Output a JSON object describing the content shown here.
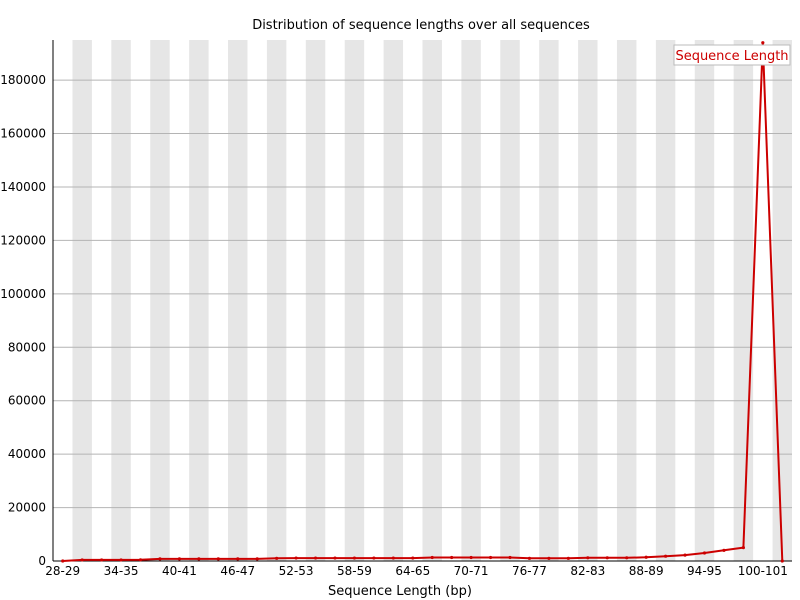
{
  "chart_data": {
    "type": "line",
    "title": "Distribution of sequence lengths over all sequences",
    "xlabel": "Sequence Length (bp)",
    "ylabel": "",
    "ylim": [
      0,
      195000
    ],
    "y_ticks": [
      0,
      20000,
      40000,
      60000,
      80000,
      100000,
      120000,
      140000,
      160000,
      180000
    ],
    "categories": [
      "28-29",
      "30-31",
      "32-33",
      "34-35",
      "36-37",
      "38-39",
      "40-41",
      "42-43",
      "44-45",
      "46-47",
      "48-49",
      "50-51",
      "52-53",
      "54-55",
      "56-57",
      "58-59",
      "60-61",
      "62-63",
      "64-65",
      "66-67",
      "68-69",
      "70-71",
      "72-73",
      "74-75",
      "76-77",
      "78-79",
      "80-81",
      "82-83",
      "84-85",
      "86-87",
      "88-89",
      "90-91",
      "92-93",
      "94-95",
      "96-97",
      "98-99",
      "100-101",
      "102"
    ],
    "x_tick_labels": [
      "28-29",
      "34-35",
      "40-41",
      "46-47",
      "52-53",
      "58-59",
      "64-65",
      "70-71",
      "76-77",
      "82-83",
      "88-89",
      "94-95",
      "100-101"
    ],
    "grid": "horizontal lines with alternating vertical column shading",
    "legend_position": "top-right",
    "series": [
      {
        "name": "Sequence Length",
        "color": "#cc0000",
        "values": [
          0,
          400,
          400,
          400,
          450,
          800,
          800,
          800,
          800,
          800,
          800,
          1000,
          1100,
          1100,
          1100,
          1100,
          1100,
          1100,
          1100,
          1300,
          1300,
          1300,
          1300,
          1300,
          1000,
          1000,
          1000,
          1200,
          1200,
          1200,
          1400,
          1800,
          2200,
          3000,
          4000,
          5000,
          194000,
          0
        ]
      }
    ]
  }
}
